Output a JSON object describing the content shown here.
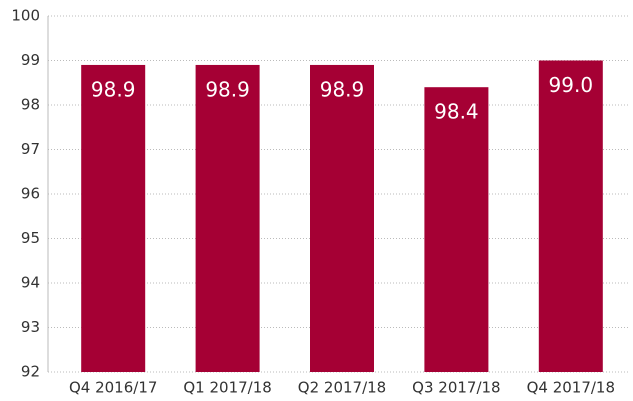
{
  "chart_data": {
    "type": "bar",
    "categories": [
      "Q4 2016/17",
      "Q1 2017/18",
      "Q2 2017/18",
      "Q3 2017/18",
      "Q4 2017/18"
    ],
    "values": [
      98.9,
      98.9,
      98.9,
      98.4,
      99.0
    ],
    "value_labels": [
      "98.9",
      "98.9",
      "98.9",
      "98.4",
      "99.0"
    ],
    "color": "#a50034",
    "ylim": [
      92,
      100
    ],
    "yticks": [
      92,
      93,
      94,
      95,
      96,
      97,
      98,
      99,
      100
    ],
    "grid": true
  }
}
